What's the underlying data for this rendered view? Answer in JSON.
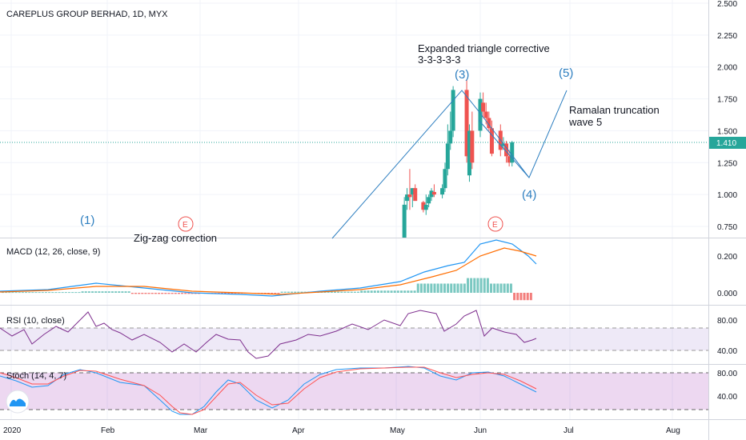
{
  "header": {
    "title": "CAREPLUS GROUP BERHAD, 1D, MYX"
  },
  "colors": {
    "up": "#26a69a",
    "down": "#ef5350",
    "price_line": "#26a69a",
    "macd": "#2196f3",
    "signal": "#ff6d00",
    "rsi": "#7e2f8e",
    "stoch_k": "#2196f3",
    "stoch_d": "#ff5252",
    "drawing": "#2e7fc0"
  },
  "icons": [
    "tradingview-logo-icon"
  ],
  "chart_data": [
    {
      "type": "candlestick",
      "title": "CAREPLUS GROUP BERHAD, 1D, MYX",
      "ylim": [
        0.65,
        2.55
      ],
      "yticks": [
        "2.500",
        "2.250",
        "2.000",
        "1.750",
        "1.500",
        "1.250",
        "1.000",
        "0.750"
      ],
      "last_price": "1.410",
      "xticks": [
        "2020",
        "Feb",
        "Mar",
        "Apr",
        "May",
        "Jun",
        "Jul",
        "Aug"
      ],
      "candles": [
        {
          "d": "2020-05-04",
          "o": 0.62,
          "h": 0.98,
          "l": 0.6,
          "c": 0.92
        },
        {
          "d": "2020-05-05",
          "o": 0.95,
          "h": 1.05,
          "l": 0.88,
          "c": 1.0
        },
        {
          "d": "2020-05-06",
          "o": 1.0,
          "h": 1.2,
          "l": 0.88,
          "c": 0.98
        },
        {
          "d": "2020-05-07",
          "o": 1.0,
          "h": 1.05,
          "l": 0.9,
          "c": 1.05
        },
        {
          "d": "2020-05-08",
          "o": 1.05,
          "h": 1.08,
          "l": 0.95,
          "c": 0.95
        },
        {
          "d": "2020-05-11",
          "o": 0.94,
          "h": 0.95,
          "l": 0.86,
          "c": 0.88
        },
        {
          "d": "2020-05-12",
          "o": 0.88,
          "h": 1.0,
          "l": 0.84,
          "c": 0.92
        },
        {
          "d": "2020-05-13",
          "o": 0.93,
          "h": 1.0,
          "l": 0.9,
          "c": 0.98
        },
        {
          "d": "2020-05-14",
          "o": 0.98,
          "h": 1.05,
          "l": 0.95,
          "c": 1.03
        },
        {
          "d": "2020-05-15",
          "o": 1.02,
          "h": 1.08,
          "l": 0.98,
          "c": 1.0
        },
        {
          "d": "2020-05-18",
          "o": 1.0,
          "h": 1.08,
          "l": 0.97,
          "c": 1.05
        },
        {
          "d": "2020-05-19",
          "o": 1.05,
          "h": 1.25,
          "l": 1.02,
          "c": 1.2
        },
        {
          "d": "2020-05-20",
          "o": 1.2,
          "h": 1.55,
          "l": 1.15,
          "c": 1.4
        },
        {
          "d": "2020-05-21",
          "o": 1.4,
          "h": 1.65,
          "l": 1.35,
          "c": 1.5
        },
        {
          "d": "2020-05-22",
          "o": 1.5,
          "h": 1.85,
          "l": 1.45,
          "c": 1.82
        },
        {
          "d": "2020-05-27",
          "o": 1.82,
          "h": 1.9,
          "l": 1.25,
          "c": 1.3
        },
        {
          "d": "2020-05-28",
          "o": 1.15,
          "h": 1.55,
          "l": 1.1,
          "c": 1.5
        },
        {
          "d": "2020-05-29",
          "o": 1.5,
          "h": 1.65,
          "l": 1.2,
          "c": 1.25
        },
        {
          "d": "2020-06-01",
          "o": 1.5,
          "h": 1.8,
          "l": 1.45,
          "c": 1.75
        },
        {
          "d": "2020-06-02",
          "o": 1.72,
          "h": 1.8,
          "l": 1.6,
          "c": 1.65
        },
        {
          "d": "2020-06-03",
          "o": 1.65,
          "h": 1.72,
          "l": 1.55,
          "c": 1.6
        },
        {
          "d": "2020-06-04",
          "o": 1.6,
          "h": 1.65,
          "l": 1.5,
          "c": 1.52
        },
        {
          "d": "2020-06-05",
          "o": 1.52,
          "h": 1.58,
          "l": 1.3,
          "c": 1.32
        },
        {
          "d": "2020-06-08",
          "o": 1.5,
          "h": 1.55,
          "l": 1.3,
          "c": 1.35
        },
        {
          "d": "2020-06-09",
          "o": 1.38,
          "h": 1.45,
          "l": 1.35,
          "c": 1.4
        },
        {
          "d": "2020-06-10",
          "o": 1.4,
          "h": 1.42,
          "l": 1.25,
          "c": 1.3
        },
        {
          "d": "2020-06-11",
          "o": 1.3,
          "h": 1.35,
          "l": 1.22,
          "c": 1.25
        },
        {
          "d": "2020-06-12",
          "o": 1.25,
          "h": 1.42,
          "l": 1.22,
          "c": 1.41
        }
      ],
      "annotations": [
        {
          "text": "Expanded triangle corrective"
        },
        {
          "text": "3-3-3-3-3"
        },
        {
          "text": "(1)"
        },
        {
          "text": "(3)"
        },
        {
          "text": "(4)"
        },
        {
          "text": "(5)"
        },
        {
          "text": "Ramalan truncation"
        },
        {
          "text": "wave 5"
        },
        {
          "text": "Zig-zag correction"
        },
        {
          "text": "E"
        }
      ]
    },
    {
      "type": "line",
      "title": "MACD (12, 26, close, 9)",
      "yticks": [
        "0.200",
        "0.000"
      ],
      "ylim": [
        -0.08,
        0.32
      ]
    },
    {
      "type": "line",
      "title": "RSI (10, close)",
      "yticks": [
        "80.00",
        "40.00"
      ],
      "ylim": [
        25,
        100
      ],
      "bands": [
        30,
        70
      ]
    },
    {
      "type": "line",
      "title": "Stoch (14, 4, 7)",
      "yticks": [
        "80.00",
        "40.00"
      ],
      "ylim": [
        10,
        95
      ],
      "bands": [
        20,
        80
      ]
    }
  ]
}
